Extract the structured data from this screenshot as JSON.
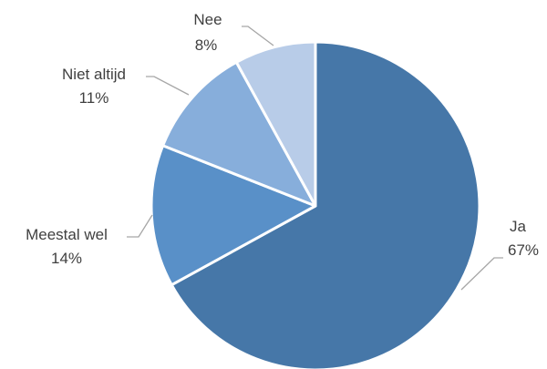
{
  "chart_data": {
    "type": "pie",
    "slices": [
      {
        "label": "Ja",
        "value": 67,
        "pct_label": "67%",
        "color": "#4677a8"
      },
      {
        "label": "Meestal wel",
        "value": 14,
        "pct_label": "14%",
        "color": "#5990c8"
      },
      {
        "label": "Niet altijd",
        "value": 11,
        "pct_label": "11%",
        "color": "#87aedb"
      },
      {
        "label": "Nee",
        "value": 8,
        "pct_label": "8%",
        "color": "#b8cce8"
      }
    ],
    "start_angle_deg": 0,
    "direction": "clockwise",
    "labels": "outside-with-leader-lines",
    "legend": "none"
  }
}
